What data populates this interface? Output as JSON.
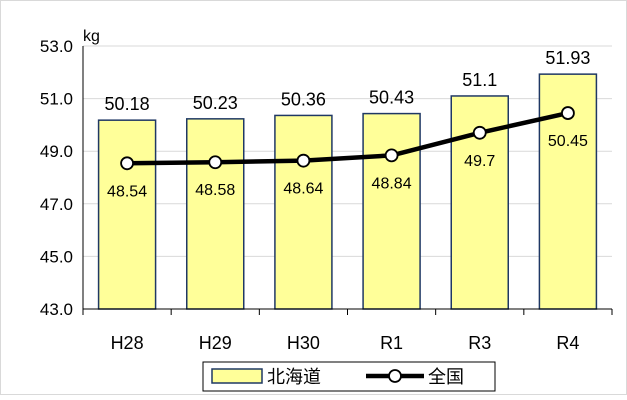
{
  "chart_data": {
    "type": "bar",
    "unit_label": "kg",
    "categories": [
      "H28",
      "H29",
      "H30",
      "R1",
      "R3",
      "R4"
    ],
    "ylim": [
      43.0,
      53.0
    ],
    "yticks": [
      "43.0",
      "45.0",
      "47.0",
      "49.0",
      "51.0",
      "53.0"
    ],
    "grid": true,
    "legend_position": "bottom",
    "series": [
      {
        "name": "北海道",
        "type": "bar",
        "color": "#ffff99",
        "values": [
          50.18,
          50.23,
          50.36,
          50.43,
          51.1,
          51.93
        ],
        "labels": [
          "50.18",
          "50.23",
          "50.36",
          "50.43",
          "51.1",
          "51.93"
        ]
      },
      {
        "name": "全国",
        "type": "line",
        "color": "#000000",
        "values": [
          48.54,
          48.58,
          48.64,
          48.84,
          49.7,
          50.45
        ],
        "labels": [
          "48.54",
          "48.58",
          "48.64",
          "48.84",
          "49.7",
          "50.45"
        ]
      }
    ]
  }
}
